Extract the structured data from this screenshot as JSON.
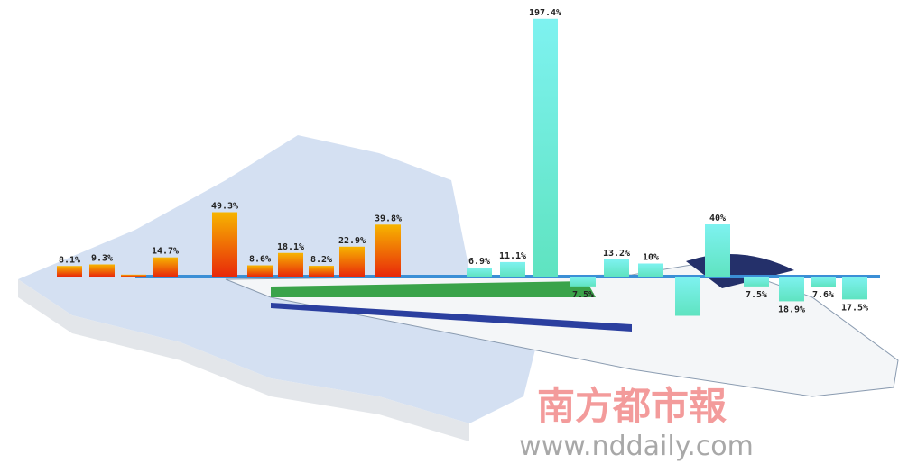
{
  "chart_data": {
    "type": "bar",
    "series": [
      {
        "color": [
          "#f7b500",
          "#e8280a"
        ],
        "values": [
          8.1,
          9.3,
          1.5,
          14.7,
          49.3,
          8.6,
          18.1,
          8.2,
          22.9,
          39.8
        ],
        "value_labels": [
          "8.1%",
          "9.3%",
          null,
          "14.7%",
          "49.3%",
          "8.6%",
          "18.1%",
          "8.2%",
          "22.9%",
          "39.8%"
        ]
      },
      {
        "color": [
          "#7ef2f0",
          "#5fe3c0"
        ],
        "values": [
          6.9,
          11.1,
          197.4,
          -7.5,
          13.2,
          10,
          -30,
          40,
          -7.5,
          -18.9,
          -7.6,
          -17.5
        ],
        "value_labels": [
          "6.9%",
          "11.1%",
          "197.4%",
          "7.5%",
          "13.2%",
          "10%",
          null,
          "40%",
          "7.5%",
          "18.9%",
          "7.6%",
          "17.5%"
        ]
      }
    ],
    "ylim": [
      -60,
      200
    ],
    "annotations": [
      "南方都市報",
      "www.nddaily.com"
    ]
  }
}
